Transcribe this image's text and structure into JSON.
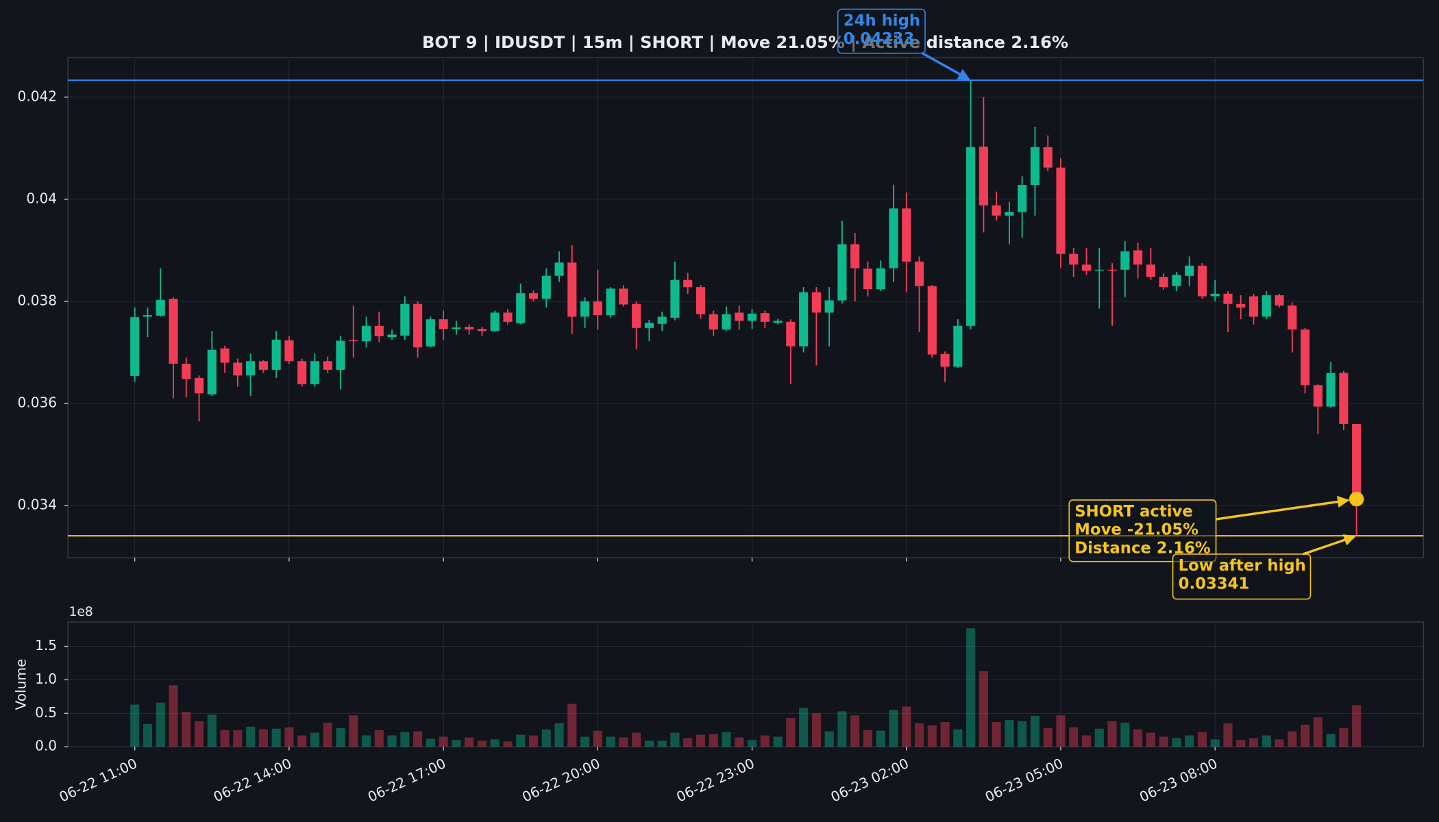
{
  "chart_data": {
    "type": "candlestick",
    "title": "BOT 9 | IDUSDT | 15m | SHORT | Move 21.05% | Active distance 2.16%",
    "x": [
      "06-22 11:00",
      "06-22 11:15",
      "06-22 11:30",
      "06-22 11:45",
      "06-22 12:00",
      "06-22 12:15",
      "06-22 12:30",
      "06-22 12:45",
      "06-22 13:00",
      "06-22 13:15",
      "06-22 13:30",
      "06-22 13:45",
      "06-22 14:00",
      "06-22 14:15",
      "06-22 14:30",
      "06-22 14:45",
      "06-22 15:00",
      "06-22 15:15",
      "06-22 15:30",
      "06-22 15:45",
      "06-22 16:00",
      "06-22 16:15",
      "06-22 16:30",
      "06-22 16:45",
      "06-22 17:00",
      "06-22 17:15",
      "06-22 17:30",
      "06-22 17:45",
      "06-22 18:00",
      "06-22 18:15",
      "06-22 18:30",
      "06-22 18:45",
      "06-22 19:00",
      "06-22 19:15",
      "06-22 19:30",
      "06-22 19:45",
      "06-22 20:00",
      "06-22 20:15",
      "06-22 20:30",
      "06-22 20:45",
      "06-22 21:00",
      "06-22 21:15",
      "06-22 21:30",
      "06-22 21:45",
      "06-22 22:00",
      "06-22 22:15",
      "06-22 22:30",
      "06-22 22:45",
      "06-22 23:00",
      "06-22 23:15",
      "06-22 23:30",
      "06-22 23:45",
      "06-23 00:00",
      "06-23 00:15",
      "06-23 00:30",
      "06-23 00:45",
      "06-23 01:00",
      "06-23 01:15",
      "06-23 01:30",
      "06-23 01:45",
      "06-23 02:00",
      "06-23 02:15",
      "06-23 02:30",
      "06-23 02:45",
      "06-23 03:00",
      "06-23 03:15",
      "06-23 03:30",
      "06-23 03:45",
      "06-23 04:00",
      "06-23 04:15",
      "06-23 04:30",
      "06-23 04:45",
      "06-23 05:00",
      "06-23 05:15",
      "06-23 05:30",
      "06-23 05:45",
      "06-23 06:00",
      "06-23 06:15",
      "06-23 06:30",
      "06-23 06:45",
      "06-23 07:00",
      "06-23 07:15",
      "06-23 07:30",
      "06-23 07:45",
      "06-23 08:00",
      "06-23 08:15",
      "06-23 08:30",
      "06-23 08:45",
      "06-23 09:00",
      "06-23 09:15",
      "06-23 09:30",
      "06-23 09:45",
      "06-23 10:00",
      "06-23 10:15",
      "06-23 10:30",
      "06-23 10:45"
    ],
    "open": [
      0.03654,
      0.0377,
      0.03772,
      0.03805,
      0.03678,
      0.0365,
      0.03618,
      0.03708,
      0.0368,
      0.03655,
      0.03683,
      0.03666,
      0.03724,
      0.03683,
      0.03638,
      0.03683,
      0.03666,
      0.03724,
      0.03722,
      0.03752,
      0.0373,
      0.03733,
      0.03795,
      0.03712,
      0.03765,
      0.03746,
      0.0375,
      0.03746,
      0.03742,
      0.03778,
      0.03757,
      0.03816,
      0.03805,
      0.0385,
      0.03876,
      0.0377,
      0.038,
      0.03773,
      0.03825,
      0.03795,
      0.03748,
      0.03756,
      0.03768,
      0.03842,
      0.03828,
      0.03775,
      0.03745,
      0.03778,
      0.03762,
      0.03777,
      0.03758,
      0.0376,
      0.03712,
      0.03818,
      0.03778,
      0.03802,
      0.03912,
      0.03864,
      0.03824,
      0.03865,
      0.03982,
      0.03878,
      0.0383,
      0.03697,
      0.03672,
      0.03752,
      0.04103,
      0.03988,
      0.03968,
      0.03975,
      0.04028,
      0.04102,
      0.04062,
      0.03893,
      0.03872,
      0.03862,
      0.03862,
      0.03862,
      0.039,
      0.03872,
      0.03848,
      0.0383,
      0.0385,
      0.0387,
      0.0381,
      0.03815,
      0.03795,
      0.0381,
      0.0377,
      0.03812,
      0.03792,
      0.03745,
      0.03636,
      0.03594,
      0.0366,
      0.0356
    ],
    "high": [
      0.03788,
      0.03788,
      0.03865,
      0.03808,
      0.0369,
      0.03655,
      0.03742,
      0.03713,
      0.03688,
      0.03698,
      0.03685,
      0.03742,
      0.03732,
      0.03688,
      0.03698,
      0.03692,
      0.03733,
      0.03792,
      0.0377,
      0.0378,
      0.03745,
      0.0381,
      0.038,
      0.0377,
      0.03782,
      0.03762,
      0.03755,
      0.0375,
      0.03782,
      0.03785,
      0.03835,
      0.03822,
      0.03865,
      0.03898,
      0.0391,
      0.03808,
      0.03862,
      0.03828,
      0.03832,
      0.038,
      0.03764,
      0.0378,
      0.03878,
      0.03856,
      0.03832,
      0.03782,
      0.0379,
      0.03792,
      0.03785,
      0.03782,
      0.03766,
      0.03765,
      0.03828,
      0.03828,
      0.03828,
      0.03958,
      0.03934,
      0.03878,
      0.0388,
      0.04028,
      0.04013,
      0.03888,
      0.03832,
      0.03702,
      0.03765,
      0.04233,
      0.042,
      0.04015,
      0.03995,
      0.04045,
      0.04142,
      0.04125,
      0.0408,
      0.03905,
      0.03905,
      0.03905,
      0.03875,
      0.03918,
      0.03915,
      0.03905,
      0.03855,
      0.03858,
      0.03888,
      0.03875,
      0.03842,
      0.0382,
      0.03812,
      0.03815,
      0.0382,
      0.03815,
      0.03798,
      0.03748,
      0.03638,
      0.03682,
      0.03664,
      0.0356
    ],
    "low": [
      0.03643,
      0.0373,
      0.0377,
      0.0361,
      0.03612,
      0.03565,
      0.03615,
      0.0366,
      0.03633,
      0.03615,
      0.0366,
      0.0365,
      0.03678,
      0.03633,
      0.03633,
      0.0366,
      0.03628,
      0.0369,
      0.0371,
      0.0372,
      0.03725,
      0.03725,
      0.0369,
      0.0371,
      0.03725,
      0.03735,
      0.03735,
      0.03732,
      0.0374,
      0.03755,
      0.03755,
      0.038,
      0.03788,
      0.03838,
      0.03736,
      0.03748,
      0.03745,
      0.03768,
      0.0379,
      0.03706,
      0.03722,
      0.03742,
      0.03763,
      0.03815,
      0.03766,
      0.03732,
      0.03742,
      0.03745,
      0.03746,
      0.03748,
      0.03755,
      0.03638,
      0.037,
      0.03675,
      0.03712,
      0.03796,
      0.038,
      0.0381,
      0.0382,
      0.03838,
      0.03818,
      0.0374,
      0.0369,
      0.03642,
      0.0367,
      0.03745,
      0.03935,
      0.03958,
      0.03912,
      0.03925,
      0.03968,
      0.04055,
      0.03865,
      0.03848,
      0.03852,
      0.03786,
      0.03752,
      0.03808,
      0.03845,
      0.03842,
      0.03823,
      0.0382,
      0.0383,
      0.03805,
      0.038,
      0.0374,
      0.03765,
      0.03755,
      0.03765,
      0.03788,
      0.037,
      0.0362,
      0.0354,
      0.03592,
      0.03548,
      0.03341
    ],
    "close": [
      0.03769,
      0.03773,
      0.03803,
      0.03678,
      0.03648,
      0.0362,
      0.03705,
      0.0368,
      0.03655,
      0.03683,
      0.03666,
      0.03725,
      0.03683,
      0.03638,
      0.03683,
      0.03666,
      0.03723,
      0.03722,
      0.03752,
      0.03732,
      0.03735,
      0.03795,
      0.0371,
      0.03765,
      0.03746,
      0.03749,
      0.03745,
      0.03742,
      0.03778,
      0.0376,
      0.03816,
      0.03805,
      0.0385,
      0.03876,
      0.0377,
      0.038,
      0.03773,
      0.03825,
      0.03794,
      0.03748,
      0.03758,
      0.0377,
      0.03842,
      0.03828,
      0.03775,
      0.03745,
      0.03775,
      0.03762,
      0.03776,
      0.0376,
      0.03762,
      0.03712,
      0.03818,
      0.03778,
      0.03802,
      0.03912,
      0.03865,
      0.03824,
      0.03865,
      0.03982,
      0.03878,
      0.0383,
      0.03696,
      0.03672,
      0.03752,
      0.04102,
      0.03988,
      0.03968,
      0.03975,
      0.04028,
      0.04102,
      0.04062,
      0.03893,
      0.03872,
      0.0386,
      0.03862,
      0.0386,
      0.03898,
      0.03872,
      0.03848,
      0.03828,
      0.03852,
      0.0387,
      0.0381,
      0.03815,
      0.03795,
      0.03788,
      0.0377,
      0.03812,
      0.03792,
      0.03745,
      0.03636,
      0.03594,
      0.0366,
      0.0356,
      0.03413
    ],
    "up_color": "#0fb98e",
    "down_color": "#f23d57",
    "ylim": [
      0.03298,
      0.04277
    ],
    "yticks": [
      0.034,
      0.036,
      0.038,
      0.04,
      0.042
    ],
    "xticks": [
      "06-22 11:00",
      "06-22 14:00",
      "06-22 17:00",
      "06-22 20:00",
      "06-22 23:00",
      "06-23 02:00",
      "06-23 05:00",
      "06-23 08:00"
    ],
    "grid": true,
    "annotations": [
      {
        "lines": [
          "24h high",
          "0.04233"
        ],
        "value": 0.04233,
        "color": "#2f86e8"
      },
      {
        "lines": [
          "SHORT active",
          "Move -21.05%",
          "Distance 2.16%"
        ],
        "color": "#f5c518"
      },
      {
        "lines": [
          "Low after high",
          "0.03341"
        ],
        "value": 0.03341,
        "color": "#f5c518"
      }
    ],
    "volume": {
      "ylabel": "Volume",
      "offset_label": "1e8",
      "values": [
        0.63,
        0.34,
        0.66,
        0.92,
        0.52,
        0.38,
        0.48,
        0.25,
        0.25,
        0.3,
        0.26,
        0.27,
        0.29,
        0.17,
        0.21,
        0.36,
        0.28,
        0.47,
        0.17,
        0.25,
        0.17,
        0.22,
        0.23,
        0.12,
        0.15,
        0.1,
        0.14,
        0.09,
        0.11,
        0.08,
        0.18,
        0.17,
        0.26,
        0.35,
        0.64,
        0.15,
        0.24,
        0.15,
        0.14,
        0.21,
        0.09,
        0.09,
        0.21,
        0.13,
        0.18,
        0.19,
        0.22,
        0.14,
        0.1,
        0.17,
        0.15,
        0.43,
        0.58,
        0.5,
        0.23,
        0.53,
        0.47,
        0.25,
        0.24,
        0.55,
        0.6,
        0.35,
        0.32,
        0.37,
        0.26,
        1.77,
        1.13,
        0.37,
        0.4,
        0.38,
        0.46,
        0.28,
        0.47,
        0.29,
        0.17,
        0.27,
        0.38,
        0.36,
        0.26,
        0.21,
        0.15,
        0.13,
        0.17,
        0.22,
        0.11,
        0.35,
        0.1,
        0.13,
        0.17,
        0.11,
        0.23,
        0.33,
        0.44,
        0.19,
        0.28,
        0.62
      ],
      "ylim": [
        0,
        1.863
      ],
      "yticks": [
        {
          "value": 0,
          "label": "0.0"
        },
        {
          "value": 0.5,
          "label": "0.5"
        },
        {
          "value": 1,
          "label": "1.0"
        },
        {
          "value": 1.5,
          "label": "1.5"
        }
      ]
    }
  }
}
